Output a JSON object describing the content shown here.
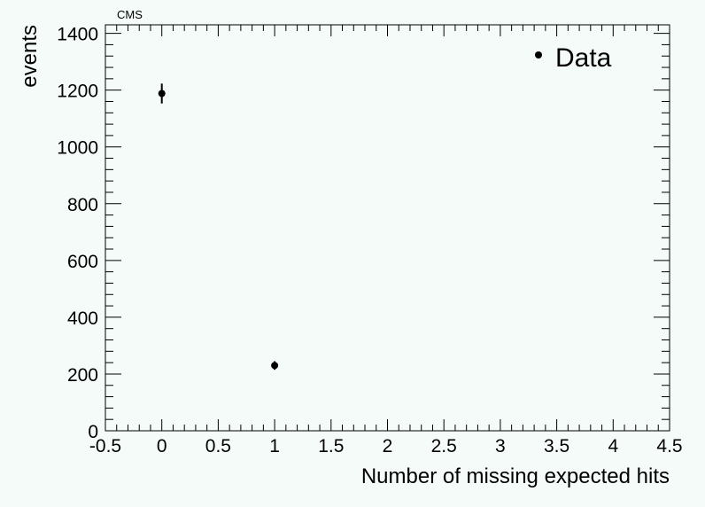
{
  "chart_data": {
    "type": "scatter",
    "label": "CMS",
    "xlabel": "Number of missing expected hits",
    "ylabel": "events",
    "xlim": [
      -0.5,
      4.5
    ],
    "ylim": [
      0,
      1430
    ],
    "xticks": [
      "-0.5",
      "0",
      "0.5",
      "1",
      "1.5",
      "2",
      "2.5",
      "3",
      "3.5",
      "4",
      "4.5"
    ],
    "yticks": [
      "0",
      "200",
      "400",
      "600",
      "800",
      "1000",
      "1200",
      "1400"
    ],
    "series": [
      {
        "name": "Data",
        "x": [
          0,
          1
        ],
        "y": [
          1188,
          230
        ],
        "yerr": [
          35,
          15
        ]
      }
    ],
    "legend": "top-right",
    "grid": false
  }
}
